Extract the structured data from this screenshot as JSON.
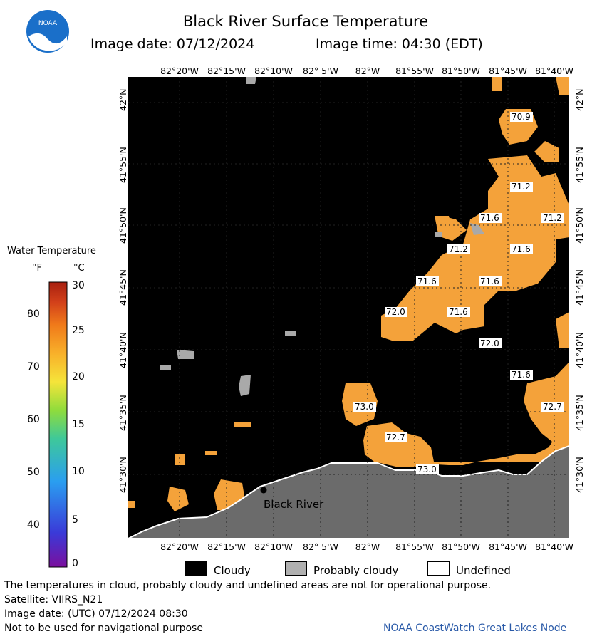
{
  "header": {
    "title": "Black River Surface Temperature",
    "image_date": "Image date: 07/12/2024",
    "image_time": "Image time: 04:30 (EDT)"
  },
  "logo": {
    "text": "NOAA"
  },
  "map": {
    "lon_labels": [
      "82°20'W",
      "82°15'W",
      "82°10'W",
      "82° 5'W",
      "82°W",
      "81°55'W",
      "81°50'W",
      "81°45'W",
      "81°40'W"
    ],
    "lat_labels": [
      "42°N",
      "41°55'N",
      "41°50'N",
      "41°45'N",
      "41°40'N",
      "41°35'N",
      "41°30'N"
    ],
    "place_label": "Black River",
    "temperature_labels": [
      "70.9",
      "71.2",
      "71.6",
      "71.2",
      "71.2",
      "71.6",
      "71.6",
      "71.6",
      "72.0",
      "71.6",
      "72.0",
      "71.6",
      "73.0",
      "72.7",
      "72.7",
      "73.0"
    ]
  },
  "legend": {
    "title": "Water Temperature",
    "unit_f": "°F",
    "unit_c": "°C",
    "f_ticks": [
      "80",
      "70",
      "60",
      "50",
      "40"
    ],
    "c_ticks": [
      "30",
      "25",
      "20",
      "15",
      "10",
      "5",
      "0"
    ],
    "colors": [
      "#7b0f9e",
      "#3a3ad8",
      "#2a9ef0",
      "#3ec89a",
      "#8fdc3c",
      "#f5e43a",
      "#f8b02a",
      "#f07a1a",
      "#d2401a",
      "#a82010"
    ]
  },
  "key": {
    "cloudy": "Cloudy",
    "probably_cloudy": "Probably cloudy",
    "undefined": "Undefined"
  },
  "footer": {
    "disclaimer": "The temperatures in cloud, probably cloudy and undefined areas are not for operational purpose.",
    "satellite": "Satellite: VIIRS_N21",
    "utc_date": "Image date: (UTC) 07/12/2024  08:30",
    "nav": "Not to be used for navigational purpose",
    "credit": "NOAA CoastWatch Great Lakes Node"
  }
}
